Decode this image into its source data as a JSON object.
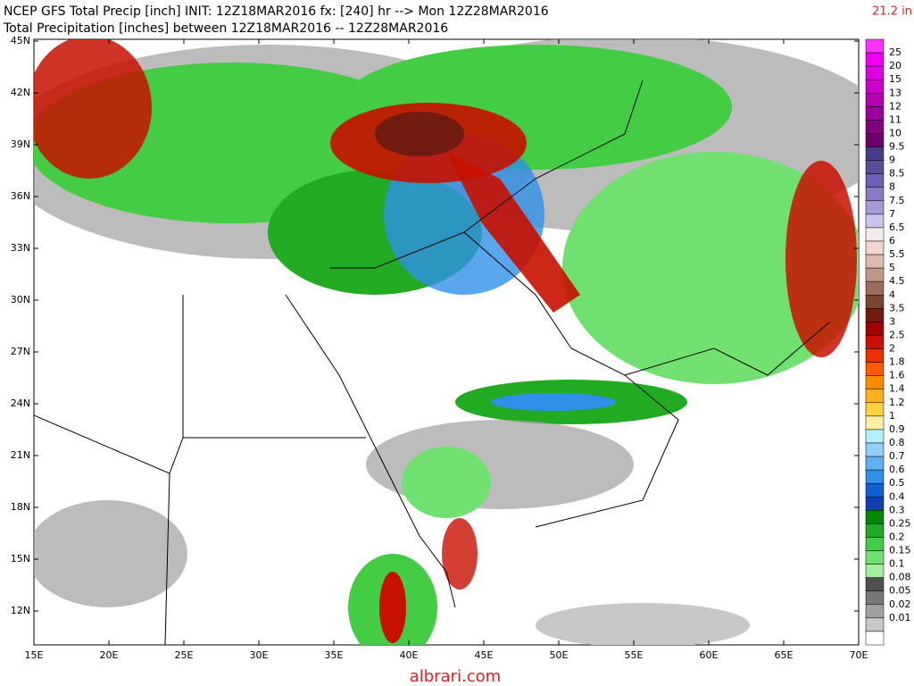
{
  "header": {
    "title": "NCEP GFS Total Precip [inch] INIT: 12Z18MAR2016 fx: [240] hr --> Mon 12Z28MAR2016",
    "subtitle": "Total Precipitation [inches] between 12Z18MAR2016 -- 12Z28MAR2016",
    "max": "21.2 in"
  },
  "map": {
    "lat_labels": [
      "45N",
      "42N",
      "39N",
      "36N",
      "33N",
      "30N",
      "27N",
      "24N",
      "21N",
      "18N",
      "15N",
      "12N"
    ],
    "lon_labels": [
      "15E",
      "20E",
      "25E",
      "30E",
      "35E",
      "40E",
      "45E",
      "50E",
      "55E",
      "60E",
      "65E",
      "70E"
    ]
  },
  "colorbar": {
    "labels": [
      "25",
      "20",
      "15",
      "13",
      "12",
      "11",
      "10",
      "9.5",
      "9",
      "8.5",
      "8",
      "7.5",
      "7",
      "6.5",
      "6",
      "5.5",
      "5",
      "4.5",
      "4",
      "3.5",
      "3",
      "2.5",
      "2",
      "1.8",
      "1.6",
      "1.4",
      "1.2",
      "1",
      "0.9",
      "0.8",
      "0.7",
      "0.6",
      "0.5",
      "0.4",
      "0.3",
      "0.25",
      "0.2",
      "0.15",
      "0.1",
      "0.08",
      "0.05",
      "0.02",
      "0.01"
    ],
    "colors": [
      "#ff33ff",
      "#f000f0",
      "#e000e0",
      "#cc00cc",
      "#b000b0",
      "#990099",
      "#800080",
      "#6a006a",
      "#4a3a8c",
      "#5a4a9c",
      "#7060b4",
      "#8a7ac6",
      "#a89ad8",
      "#ccc4ec",
      "#f4ecec",
      "#f0d8d0",
      "#dcbcb0",
      "#c09888",
      "#9c6c5c",
      "#7a4434",
      "#701a10",
      "#a00000",
      "#c81000",
      "#e83000",
      "#ff5a00",
      "#ff8c00",
      "#ffb020",
      "#ffd040",
      "#fff0a0",
      "#b0f0ff",
      "#90d0ff",
      "#60b0f0",
      "#3090e8",
      "#1060d0",
      "#1040b0",
      "#008800",
      "#22aa22",
      "#44cc44",
      "#70e070",
      "#a0f0a0",
      "#505050",
      "#787878",
      "#a0a0a0",
      "#c8c8c8",
      "#ffffff"
    ],
    "note_domain": "albrari.com"
  }
}
